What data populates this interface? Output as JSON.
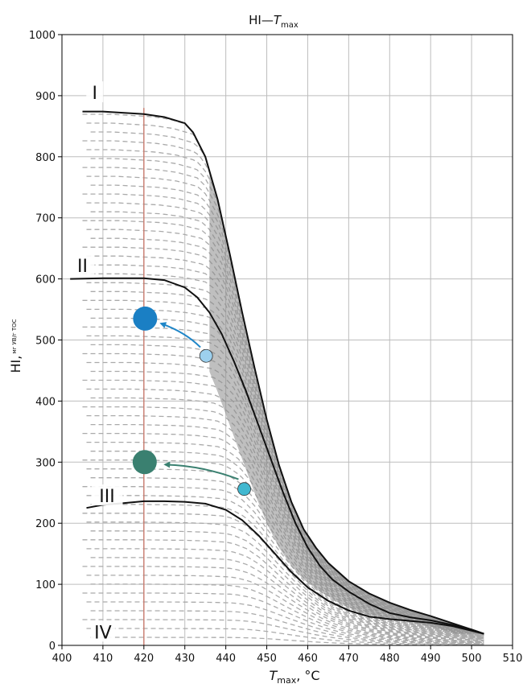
{
  "chart_data": {
    "type": "line",
    "title": "HI—",
    "title_var": "T",
    "title_sub": "max",
    "ylabel": "HI,",
    "ylabel_sub": "мг УВ/г ТОС",
    "xlabel_var": "T",
    "xlabel_sub": "max",
    "xlabel_unit": ", °C",
    "xlim": [
      400,
      510
    ],
    "ylim": [
      0,
      1000
    ],
    "x_ticks": [
      400,
      410,
      420,
      430,
      440,
      450,
      460,
      470,
      480,
      490,
      500,
      510
    ],
    "y_ticks": [
      0,
      100,
      200,
      300,
      400,
      500,
      600,
      700,
      800,
      900,
      1000
    ],
    "grid": true,
    "reference_line": {
      "x": 420,
      "color": "#c97b6e"
    },
    "zones": [
      {
        "label": "I",
        "x": 408,
        "y": 905
      },
      {
        "label": "II",
        "x": 405,
        "y": 622
      },
      {
        "label": "III",
        "x": 411,
        "y": 245
      },
      {
        "label": "IV",
        "x": 410,
        "y": 22
      }
    ],
    "boundary_curves": [
      {
        "name": "I",
        "points": [
          [
            405,
            874
          ],
          [
            410,
            874
          ],
          [
            420,
            870
          ],
          [
            425,
            865
          ],
          [
            430,
            855
          ],
          [
            432,
            840
          ],
          [
            435,
            800
          ],
          [
            438,
            730
          ],
          [
            441,
            640
          ],
          [
            444,
            545
          ],
          [
            447,
            455
          ],
          [
            450,
            370
          ],
          [
            453,
            295
          ],
          [
            456,
            235
          ],
          [
            459,
            190
          ],
          [
            462,
            160
          ],
          [
            465,
            135
          ],
          [
            470,
            105
          ],
          [
            475,
            85
          ],
          [
            480,
            70
          ],
          [
            485,
            58
          ],
          [
            490,
            48
          ],
          [
            495,
            37
          ],
          [
            500,
            26
          ],
          [
            503,
            19
          ]
        ]
      },
      {
        "name": "II",
        "points": [
          [
            402,
            600
          ],
          [
            410,
            601
          ],
          [
            415,
            601
          ],
          [
            420,
            601
          ],
          [
            425,
            598
          ],
          [
            430,
            586
          ],
          [
            433,
            570
          ],
          [
            436,
            545
          ],
          [
            439,
            510
          ],
          [
            442,
            465
          ],
          [
            445,
            415
          ],
          [
            448,
            360
          ],
          [
            451,
            305
          ],
          [
            454,
            250
          ],
          [
            457,
            200
          ],
          [
            460,
            160
          ],
          [
            463,
            130
          ],
          [
            466,
            108
          ],
          [
            470,
            88
          ],
          [
            475,
            68
          ],
          [
            480,
            53
          ],
          [
            485,
            46
          ],
          [
            490,
            41
          ],
          [
            495,
            34
          ],
          [
            500,
            26
          ],
          [
            503,
            19
          ]
        ]
      },
      {
        "name": "III",
        "points": [
          [
            406,
            225
          ],
          [
            410,
            230
          ],
          [
            415,
            233
          ],
          [
            420,
            236
          ],
          [
            425,
            236
          ],
          [
            430,
            235
          ],
          [
            435,
            232
          ],
          [
            440,
            222
          ],
          [
            444,
            205
          ],
          [
            448,
            180
          ],
          [
            452,
            150
          ],
          [
            456,
            120
          ],
          [
            460,
            95
          ],
          [
            465,
            73
          ],
          [
            470,
            57
          ],
          [
            475,
            47
          ],
          [
            480,
            43
          ],
          [
            485,
            40
          ],
          [
            490,
            37
          ],
          [
            495,
            32
          ],
          [
            500,
            24
          ],
          [
            503,
            19
          ]
        ]
      }
    ],
    "dashed_curves_color": "#aaaaaa",
    "points": [
      {
        "name": "blue-start",
        "x": 435.2,
        "y": 474,
        "r": 8,
        "color": "#9dd0ee"
      },
      {
        "name": "blue-end",
        "x": 420.3,
        "y": 535,
        "r": 15,
        "color": "#1a7fc4"
      },
      {
        "name": "teal-start",
        "x": 444.5,
        "y": 256,
        "r": 8,
        "color": "#41b8d0"
      },
      {
        "name": "teal-end",
        "x": 420.2,
        "y": 300,
        "r": 15,
        "color": "#3a8070"
      }
    ],
    "arrows": [
      {
        "name": "blue-arrow",
        "from": [
          433.8,
          488
        ],
        "to": [
          424.2,
          527
        ],
        "color": "#1f86c8"
      },
      {
        "name": "teal-arrow",
        "from": [
          443.1,
          272
        ],
        "to": [
          425.2,
          296
        ],
        "color": "#3a8070"
      }
    ]
  }
}
